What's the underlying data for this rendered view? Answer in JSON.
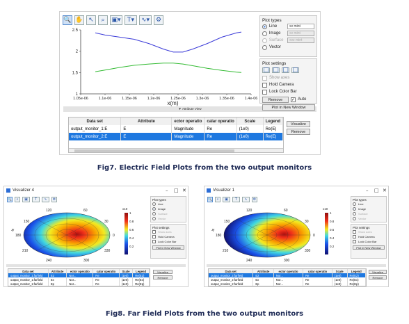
{
  "top": {
    "plot_types_title": "Plot types",
    "plot_type_options": [
      "Line",
      "Image",
      "Surface",
      "Vector"
    ],
    "line_dropdown": "xv mint",
    "image_dropdown": "xv mint",
    "surface_dropdown": "xvz mint",
    "plot_settings_title": "Plot settings",
    "settings": [
      "Show axes",
      "Hold Camera",
      "Lock Color Bar"
    ],
    "buttons": {
      "remove": "Remove",
      "auto": "Auto",
      "new_window": "Plot in New Window",
      "visualize": "Visualize",
      "remove2": "Remove"
    },
    "attribute_view": "Attribute View",
    "table_headers": [
      "Data set",
      "Attribute",
      "ector operatio",
      "calar operatio",
      "Scale",
      "Legend"
    ],
    "table_rows": [
      [
        "output_monitor_1:E",
        "E",
        "Magnitude",
        "Re",
        "(1e0)",
        "Re(E)"
      ],
      [
        "output_monitor_2:E",
        "E",
        "Magnitude",
        "Re",
        "(1e0)",
        "Re(E)"
      ]
    ],
    "x_label": "x(m)"
  },
  "chart_data": {
    "type": "line",
    "title": "",
    "xlabel": "x(m)",
    "ylabel": "",
    "xlim": [
      1.05e-06,
      1.4e-06
    ],
    "ylim": [
      1.0,
      2.5
    ],
    "x_tick_labels": [
      "1.05e-06",
      "1.1e-06",
      "1.15e-06",
      "1.2e-06",
      "1.25e-06",
      "1.3e-06",
      "1.35e-06",
      "1.4e-06"
    ],
    "y_tick_labels": [
      "1",
      "1.5",
      "2",
      "2.5"
    ],
    "series": [
      {
        "color": "#3a3ad8",
        "x": [
          1.08e-06,
          1.1e-06,
          1.13e-06,
          1.16e-06,
          1.19e-06,
          1.22e-06,
          1.24e-06,
          1.26e-06,
          1.28e-06,
          1.31e-06,
          1.34e-06,
          1.37e-06,
          1.38e-06
        ],
        "values": [
          2.43,
          2.38,
          2.33,
          2.28,
          2.18,
          2.05,
          1.98,
          1.98,
          2.05,
          2.18,
          2.33,
          2.43,
          2.45
        ]
      },
      {
        "color": "#33bb33",
        "x": [
          1.08e-06,
          1.1e-06,
          1.13e-06,
          1.16e-06,
          1.19e-06,
          1.22e-06,
          1.24e-06,
          1.26e-06,
          1.28e-06,
          1.31e-06,
          1.34e-06,
          1.37e-06,
          1.38e-06
        ],
        "values": [
          1.52,
          1.56,
          1.62,
          1.67,
          1.7,
          1.72,
          1.72,
          1.7,
          1.66,
          1.6,
          1.55,
          1.51,
          1.5
        ]
      }
    ]
  },
  "caption7": "Fig7. Electric Field Plots from the two output monitors",
  "caption8": "Fig8. Far Field Plots from the two output monitors",
  "left_window": {
    "title": "Visualizer 4",
    "table_headers": [
      "Data set",
      "Attribute",
      "ector operatio",
      "calar operatio",
      "Scale",
      "Legend"
    ],
    "rows": [
      [
        "output_monitor_1:farfield",
        "E2",
        "Nor...",
        "Re",
        "(1e0)",
        "Re(E2)"
      ],
      [
        "output_monitor_1:farfield",
        "Ex",
        "Nor...",
        "Re",
        "(1e0)",
        "Re(Ex)"
      ],
      [
        "output_monitor_1:farfield",
        "Ep",
        "Nor...",
        "Re",
        "(1e0)",
        "Re(Ep)"
      ]
    ],
    "colorbar_ticks": [
      "1",
      "0.8",
      "0.6",
      "0.4",
      "0.2"
    ],
    "colorbar_exp": "x10",
    "angle_labels": [
      "120",
      "60",
      "150",
      "30",
      "180",
      "0",
      "210",
      "330",
      "240",
      "300"
    ],
    "ux_label": "ux",
    "uy_label": "uy"
  },
  "right_window": {
    "title": "Visualizer 1",
    "rows": [
      [
        "output_monitor_2:farfield",
        "E2",
        "Nor...",
        "Re",
        "(1e0)",
        "Re(E2)"
      ],
      [
        "output_monitor_2:farfield",
        "Ex",
        "Nor...",
        "Re",
        "(1e0)",
        "Re(Ex)"
      ],
      [
        "output_monitor_2:farfield",
        "Ep",
        "Nor...",
        "Re",
        "(1e0)",
        "Re(Ep)"
      ]
    ],
    "colorbar_ticks": [
      "1",
      "0.8",
      "0.6",
      "0.4",
      "0.2"
    ],
    "colorbar_exp": "x10",
    "angle_labels": [
      "120",
      "60",
      "150",
      "30",
      "180",
      "0",
      "210",
      "330",
      "240",
      "300"
    ],
    "ux_label": "ux",
    "uy_label": "uy"
  }
}
